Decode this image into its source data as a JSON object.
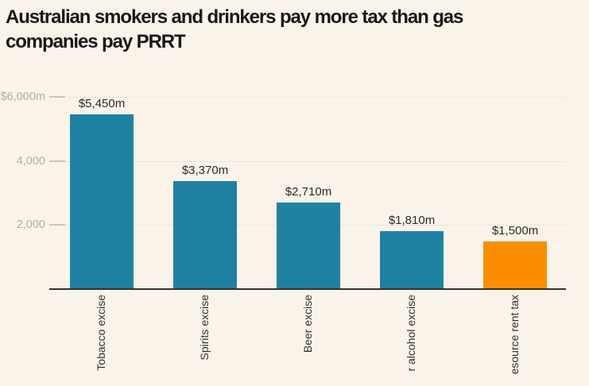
{
  "page": {
    "background": "#faf3e9"
  },
  "title": {
    "line1": "Australian smokers and drinkers pay more tax than gas",
    "line2": "companies pay PRRT"
  },
  "colors": {
    "background": "#faf3e9",
    "bar_teal": "#1f81a2",
    "bar_orange": "#fa8e00",
    "axis_line": "#35302b",
    "gridline": "#ebe4d9",
    "tick": "#cbc4b9",
    "y_axis_label": "#b4ada3",
    "value_label": "#2c2a27",
    "x_axis_label": "#33302c",
    "title_text": "#191919"
  },
  "chart_data": {
    "type": "bar",
    "title": "Australian smokers and drinkers pay more tax than gas companies pay PRRT",
    "categories": [
      "Tobacco excise",
      "Spirits excise",
      "Beer excise",
      "r alcohol excise",
      "esource rent tax"
    ],
    "values": [
      5450,
      3370,
      2710,
      1810,
      1500
    ],
    "value_labels": [
      "$5,450m",
      "$3,370m",
      "$2,710m",
      "$1,810m",
      "$1,500m"
    ],
    "bar_colors": [
      "#1f81a2",
      "#1f81a2",
      "#1f81a2",
      "#1f81a2",
      "#fa8e00"
    ],
    "y_ticks": [
      {
        "label": "$6,000m",
        "value": 6000
      },
      {
        "label": "4,000",
        "value": 4000
      },
      {
        "label": "2,000",
        "value": 2000
      }
    ],
    "ylim": [
      0,
      6000
    ],
    "grid": "horizontal",
    "legend": "none",
    "x_label_rotation": -90,
    "xlabel": "",
    "ylabel": ""
  }
}
